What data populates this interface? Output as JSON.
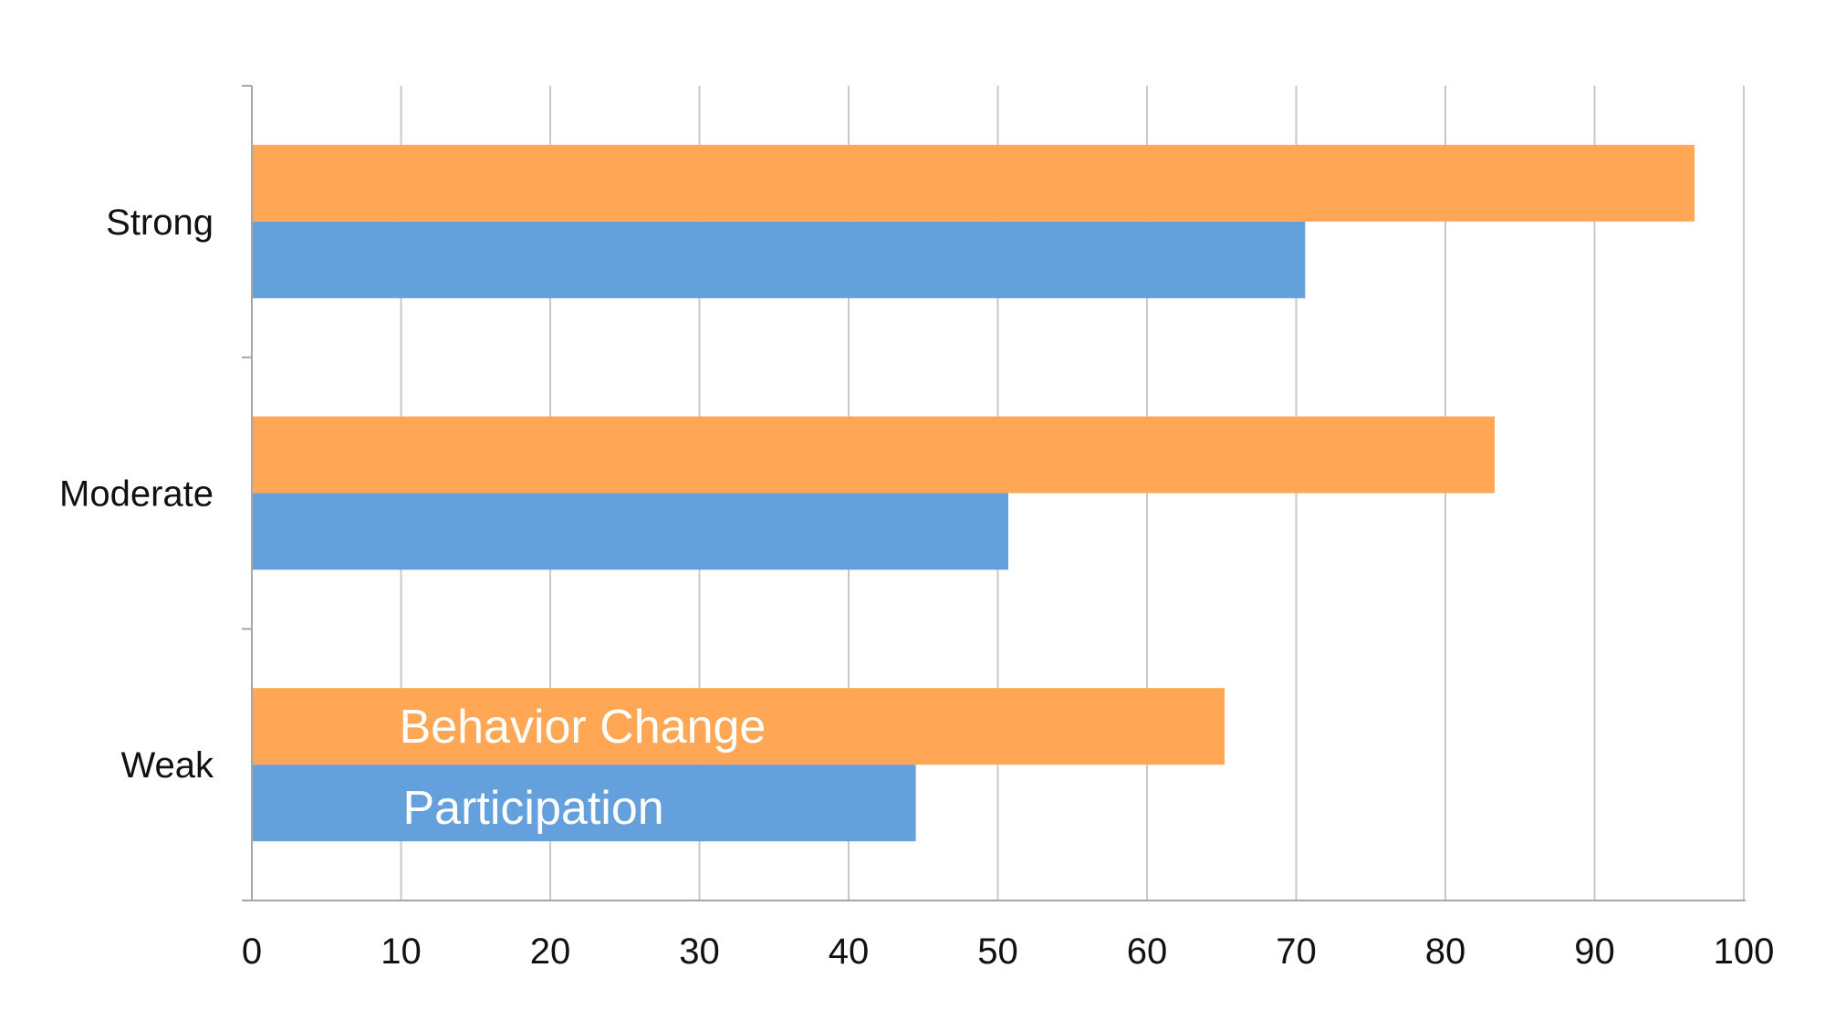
{
  "chart_data": {
    "type": "bar",
    "orientation": "horizontal",
    "categories": [
      "Strong",
      "Moderate",
      "Weak"
    ],
    "series": [
      {
        "name": "Behavior Change",
        "color": "#ffa755",
        "values": [
          96.7,
          83.3,
          65.2
        ]
      },
      {
        "name": "Participation",
        "color": "#63a0dc",
        "values": [
          70.6,
          50.7,
          44.5
        ]
      }
    ],
    "xlim": [
      0,
      100
    ],
    "x_ticks": [
      "0",
      "10",
      "20",
      "30",
      "40",
      "50",
      "60",
      "70",
      "80",
      "90",
      "100"
    ],
    "grid": true,
    "legend": "inline labels on the Weak bars",
    "title": "",
    "xlabel": "",
    "ylabel": ""
  }
}
